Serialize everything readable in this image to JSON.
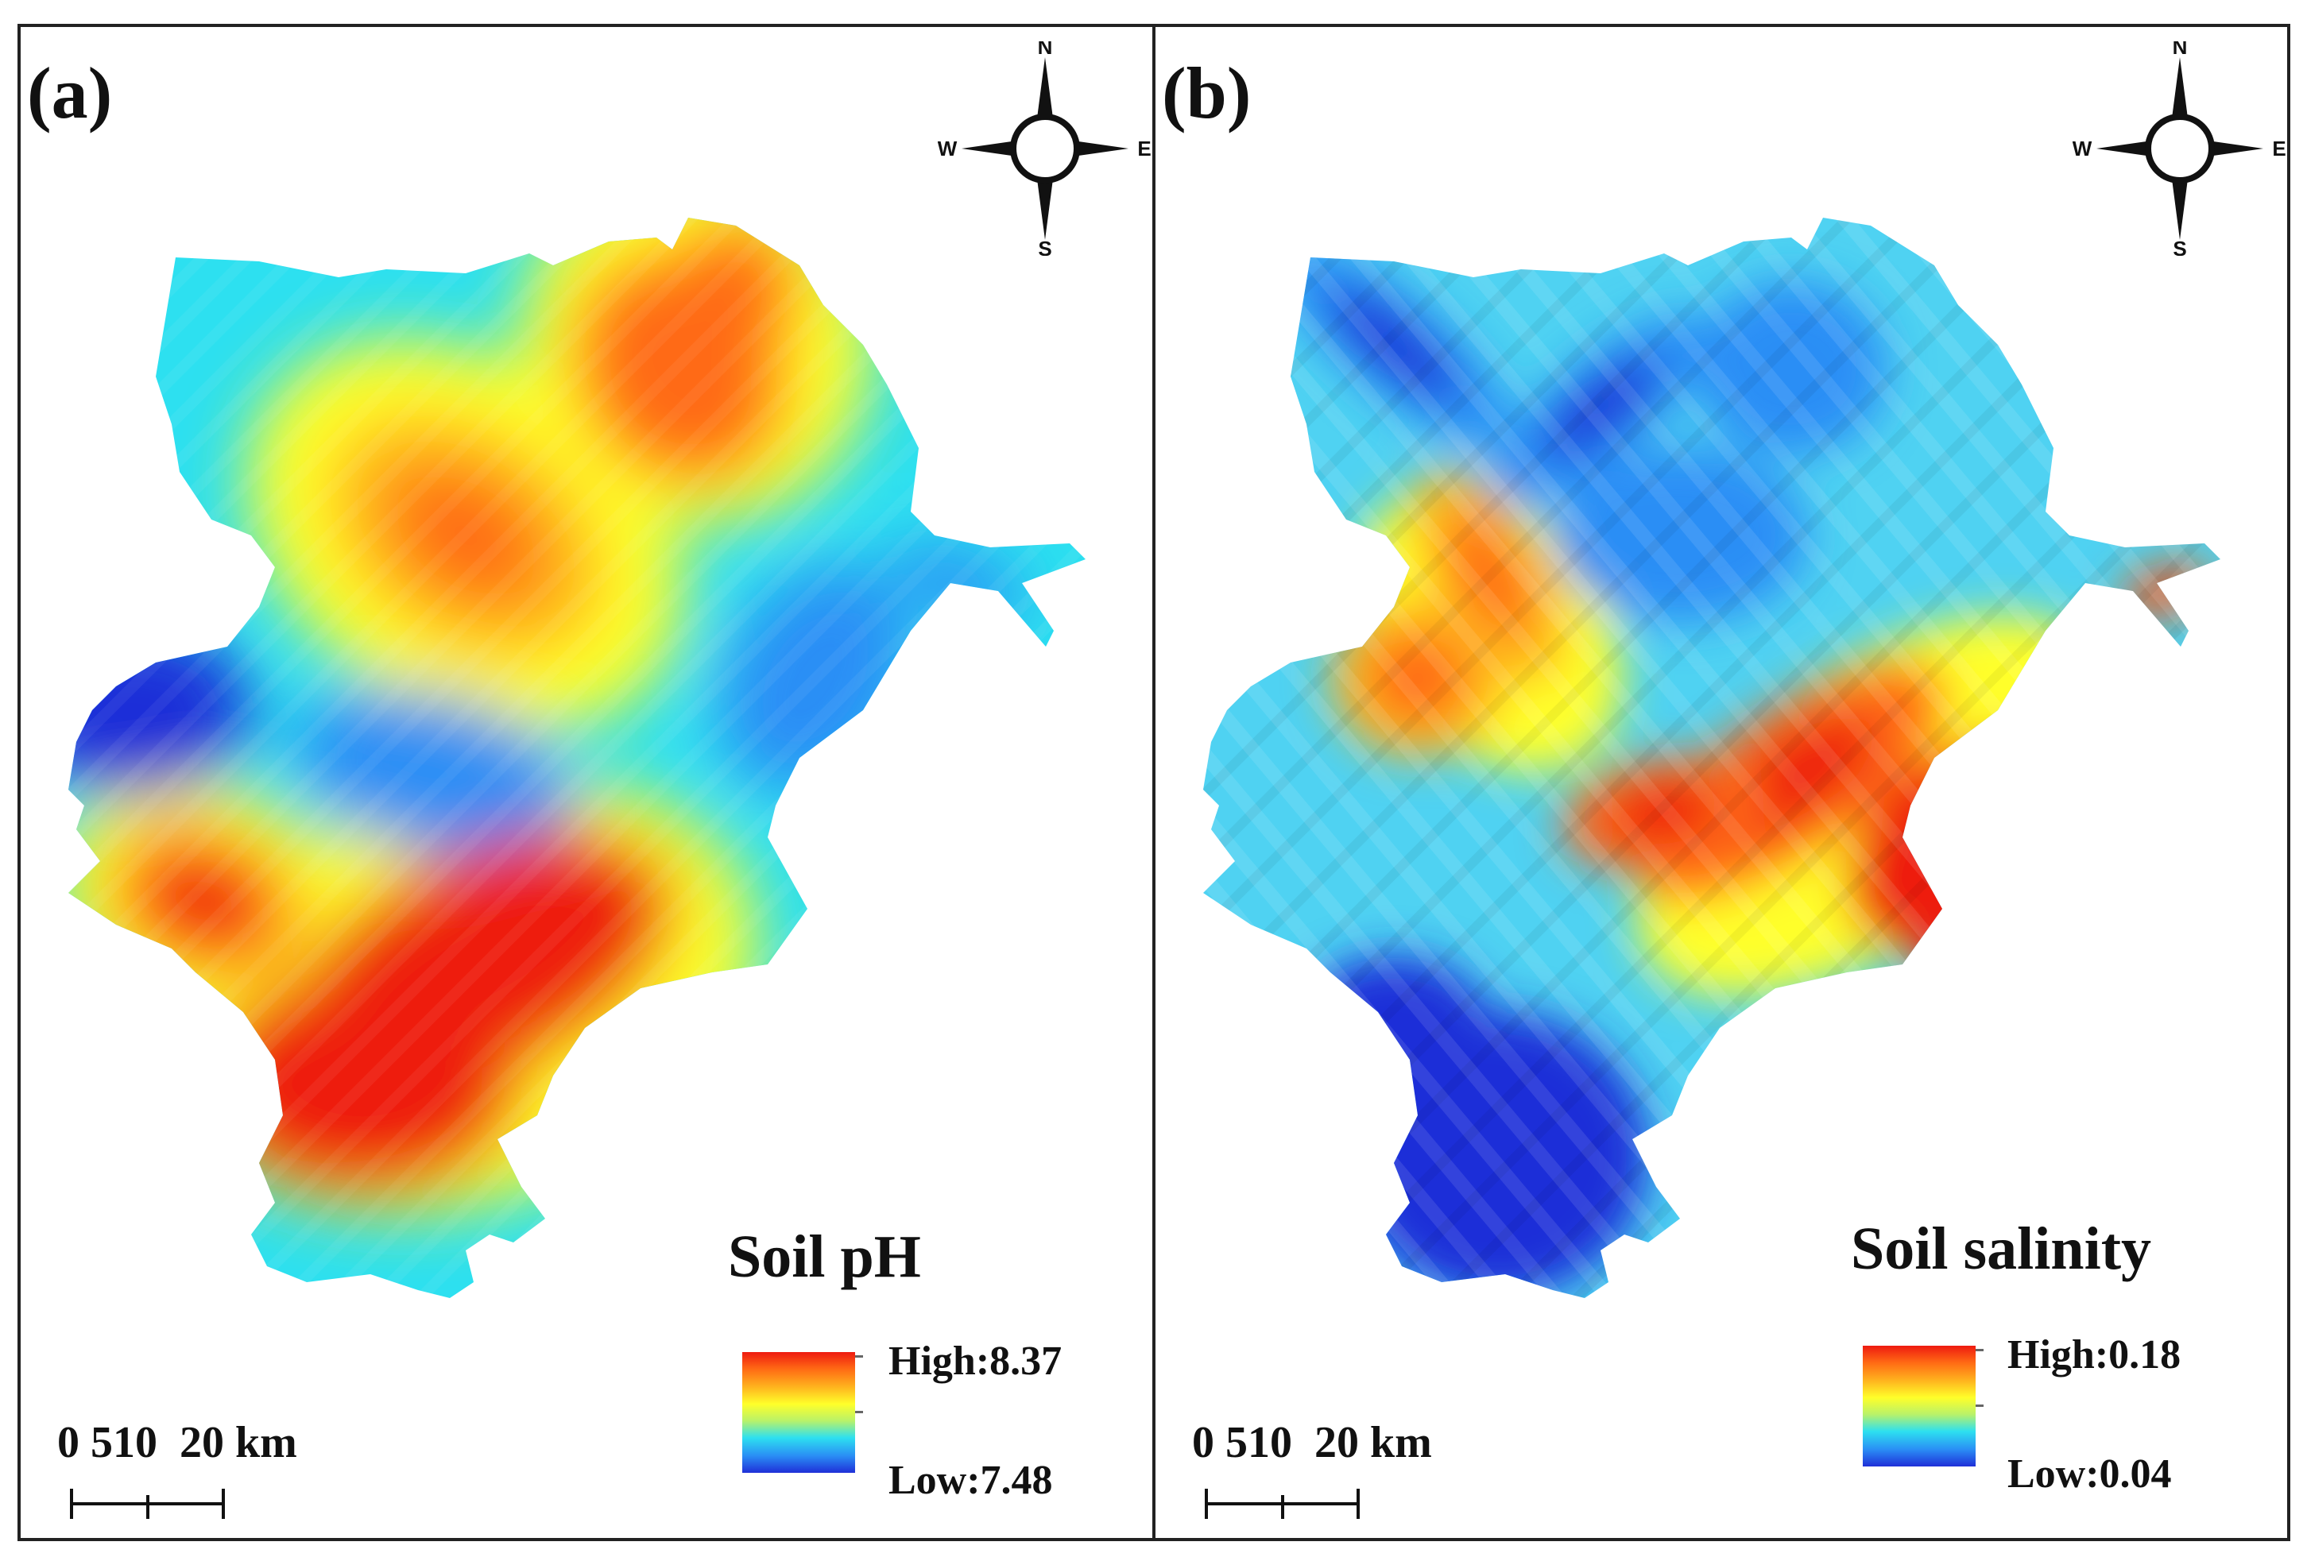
{
  "colors": {
    "ramp": [
      "#1f2fd8",
      "#2a8ef5",
      "#2de0f0",
      "#b8f26a",
      "#ffff2a",
      "#ffb41e",
      "#ff6a14",
      "#ee1a10"
    ],
    "frame": "#222222",
    "text": "#111111"
  },
  "panels": [
    {
      "label": "(a)",
      "compass": {
        "n": "N",
        "s": "S",
        "e": "E",
        "w": "W"
      },
      "legend": {
        "title": "Soil pH",
        "high": "High:8.37",
        "low": "Low:7.48",
        "high_value": 8.37,
        "low_value": 7.48
      },
      "scale": {
        "labels": "0 510  20 km",
        "ticks_km": [
          0,
          5,
          10,
          20
        ]
      },
      "surface": {
        "hot_zones": [
          {
            "name": "north-center",
            "level": 0.78
          },
          {
            "name": "northeast",
            "level": 0.82
          },
          {
            "name": "south-center",
            "level": 0.93
          },
          {
            "name": "southwest-lobe",
            "level": 0.88
          }
        ],
        "cold_zones": [
          {
            "name": "west",
            "level": 0.04
          },
          {
            "name": "center",
            "level": 0.18
          },
          {
            "name": "east",
            "level": 0.16
          }
        ]
      }
    },
    {
      "label": "(b)",
      "compass": {
        "n": "N",
        "s": "S",
        "e": "E",
        "w": "W"
      },
      "legend": {
        "title": "Soil salinity",
        "high": "High:0.18",
        "low": "Low:0.04",
        "high_value": 0.18,
        "low_value": 0.04
      },
      "scale": {
        "labels": "0 510  20 km",
        "ticks_km": [
          0,
          5,
          10,
          20
        ]
      },
      "surface": {
        "hot_zones": [
          {
            "name": "southeast-coast",
            "level": 0.95
          },
          {
            "name": "east-diagonal",
            "level": 0.85
          },
          {
            "name": "west-center",
            "level": 0.72
          },
          {
            "name": "far-east-spur",
            "level": 0.88
          }
        ],
        "cold_zones": [
          {
            "name": "northwest",
            "level": 0.1
          },
          {
            "name": "north-center",
            "level": 0.2
          },
          {
            "name": "south",
            "level": 0.05
          }
        ]
      }
    }
  ]
}
